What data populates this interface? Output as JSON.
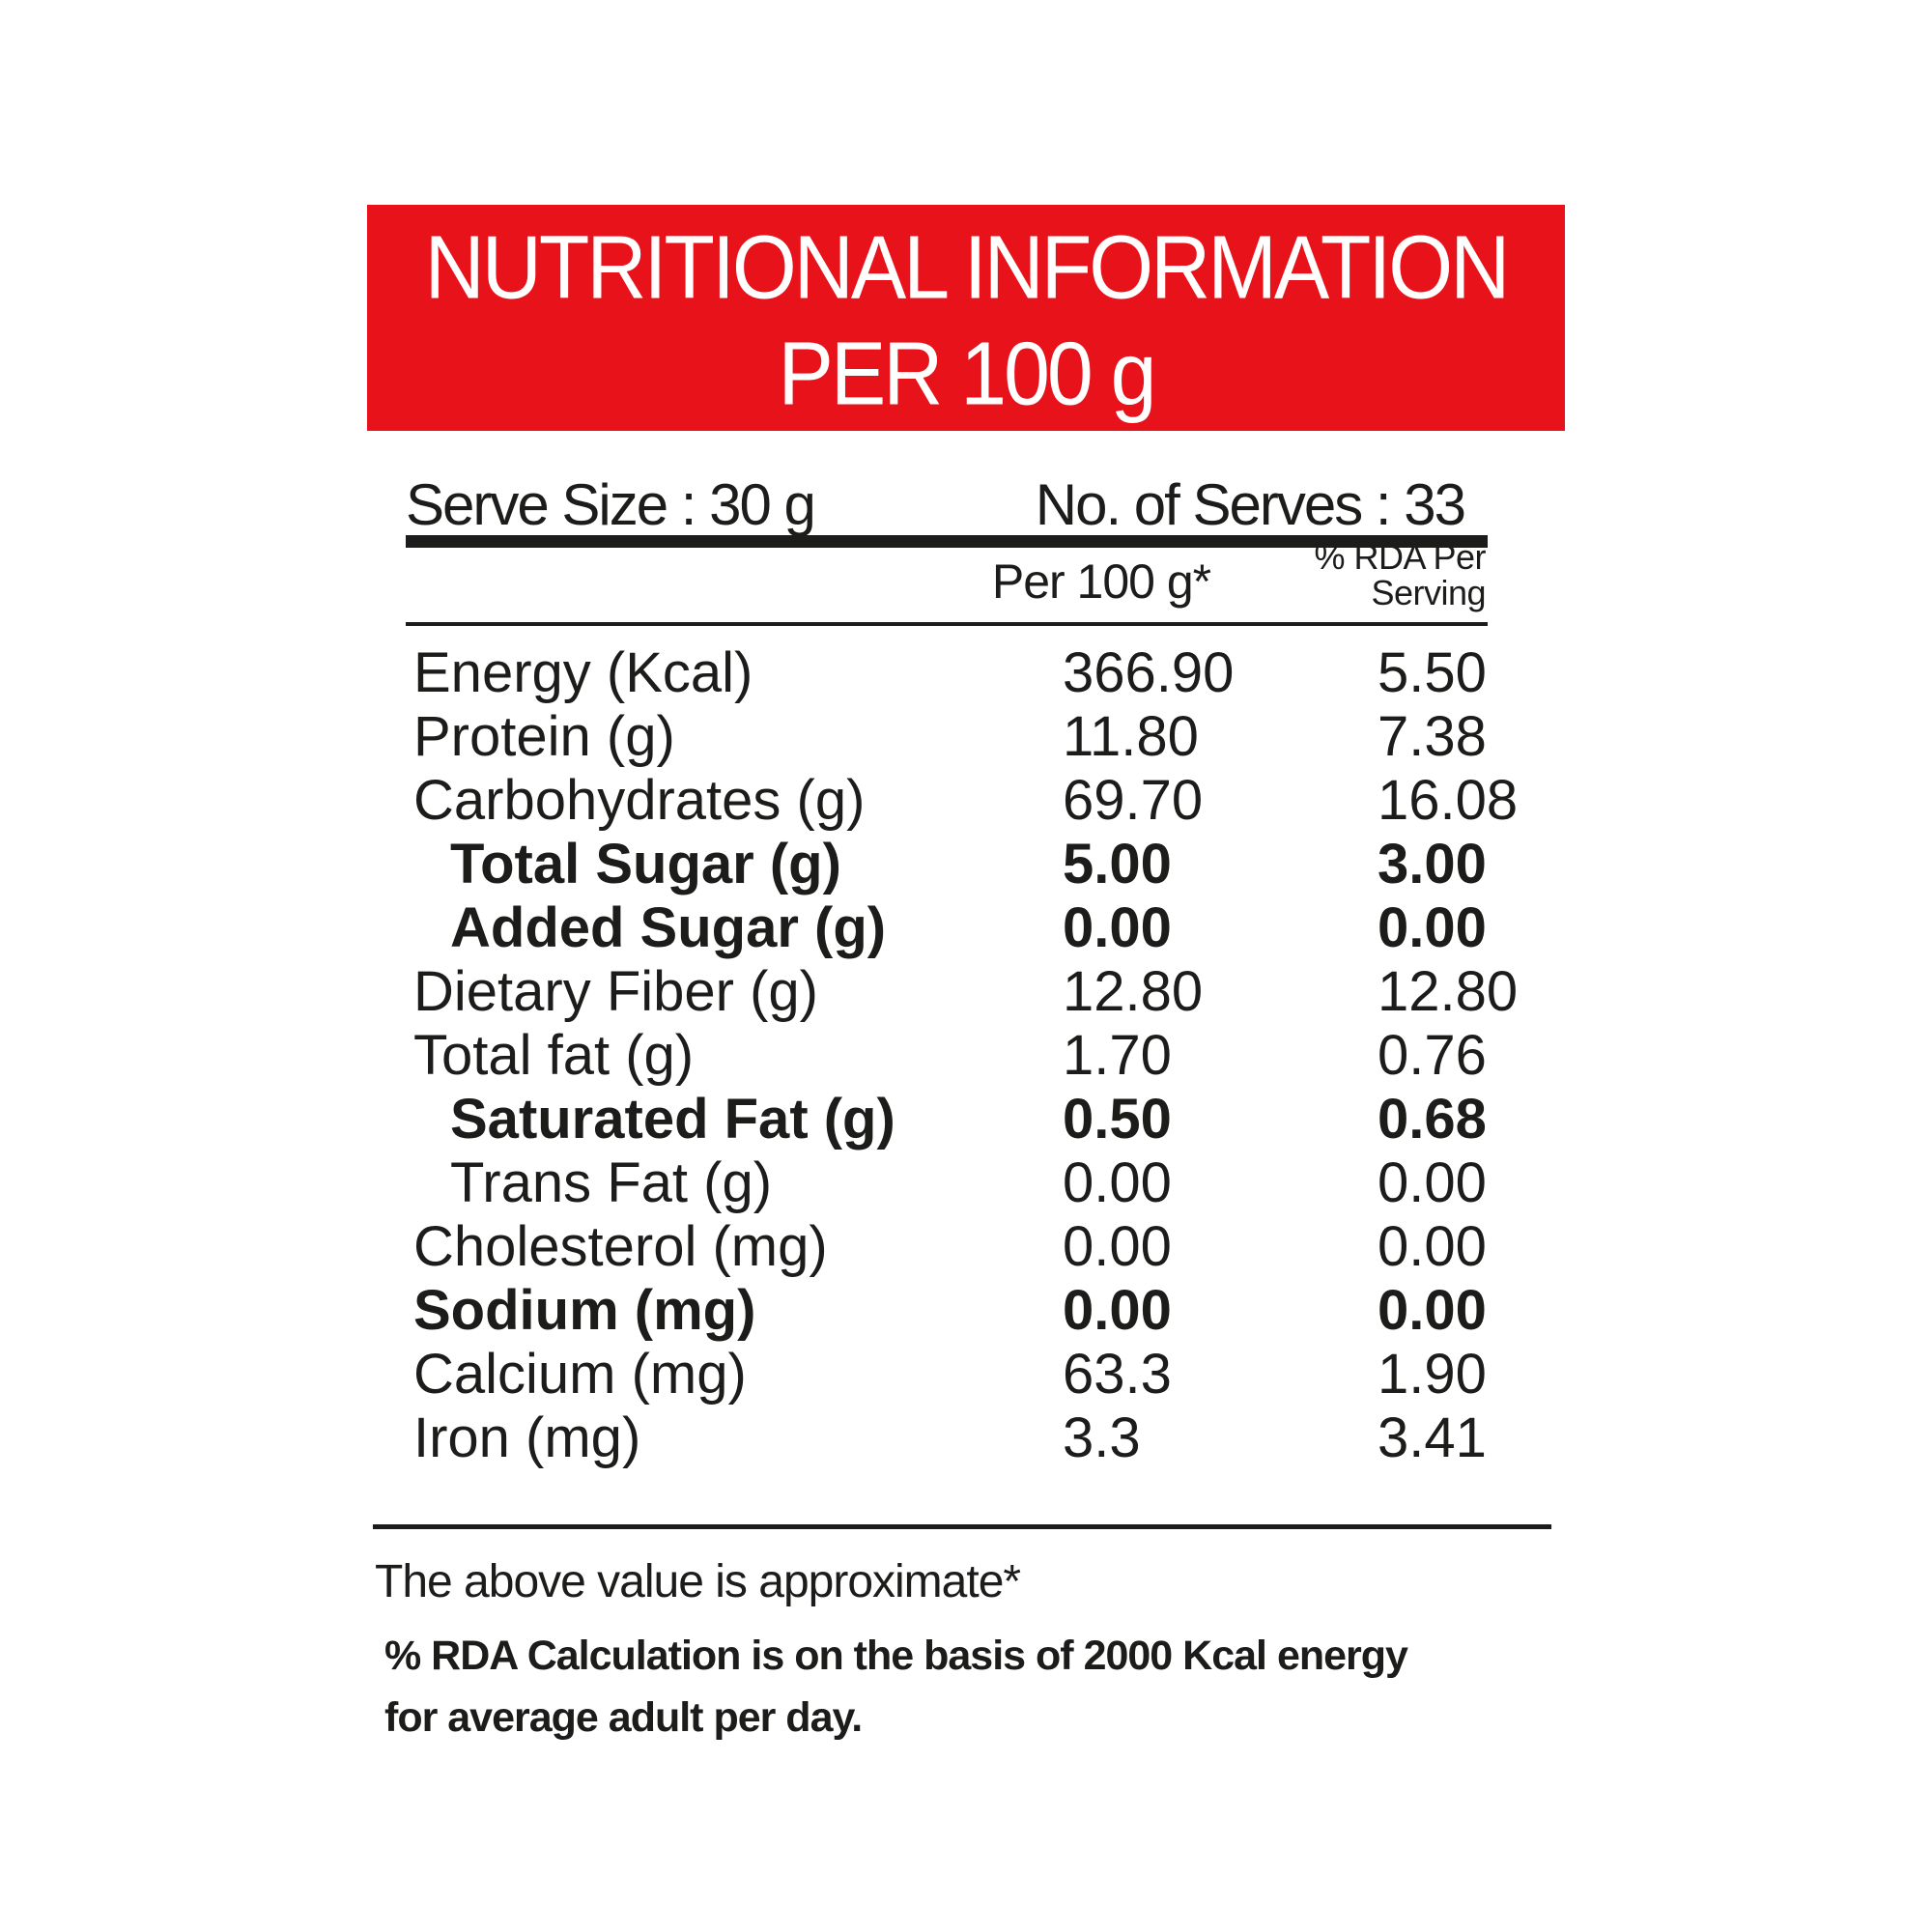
{
  "banner": {
    "line1": "NUTRITIONAL INFORMATION",
    "line2": "PER 100 g",
    "bg_color": "#e8131a",
    "text_color": "#ffffff"
  },
  "serving": {
    "serve_size": "Serve Size : 30 g",
    "no_of_serves": "No. of Serves : 33"
  },
  "table": {
    "col1_header": "Per 100 g*",
    "col2_header_line1": "% RDA Per",
    "col2_header_line2": "Serving",
    "rows": [
      {
        "label": "Energy (Kcal)",
        "per_100g": "366.90",
        "rda_per_serving": "5.50",
        "bold": false,
        "indent": false
      },
      {
        "label": "Protein (g)",
        "per_100g": "11.80",
        "rda_per_serving": "7.38",
        "bold": false,
        "indent": false
      },
      {
        "label": "Carbohydrates (g)",
        "per_100g": "69.70",
        "rda_per_serving": "16.08",
        "bold": false,
        "indent": false
      },
      {
        "label": "Total Sugar (g)",
        "per_100g": "5.00",
        "rda_per_serving": "3.00",
        "bold": true,
        "indent": true
      },
      {
        "label": "Added Sugar (g)",
        "per_100g": "0.00",
        "rda_per_serving": "0.00",
        "bold": true,
        "indent": true
      },
      {
        "label": "Dietary Fiber (g)",
        "per_100g": "12.80",
        "rda_per_serving": "12.80",
        "bold": false,
        "indent": false
      },
      {
        "label": "Total fat (g)",
        "per_100g": "1.70",
        "rda_per_serving": "0.76",
        "bold": false,
        "indent": false
      },
      {
        "label": "Saturated Fat (g)",
        "per_100g": "0.50",
        "rda_per_serving": "0.68",
        "bold": true,
        "indent": true
      },
      {
        "label": "Trans Fat (g)",
        "per_100g": "0.00",
        "rda_per_serving": "0.00",
        "bold": false,
        "indent": true
      },
      {
        "label": "Cholesterol (mg)",
        "per_100g": "0.00",
        "rda_per_serving": "0.00",
        "bold": false,
        "indent": false
      },
      {
        "label": "Sodium (mg)",
        "per_100g": "0.00",
        "rda_per_serving": "0.00",
        "bold": true,
        "indent": false
      },
      {
        "label": "Calcium (mg)",
        "per_100g": "63.3",
        "rda_per_serving": "1.90",
        "bold": false,
        "indent": false
      },
      {
        "label": "Iron (mg)",
        "per_100g": "3.3",
        "rda_per_serving": "3.41",
        "bold": false,
        "indent": false
      }
    ]
  },
  "footnotes": {
    "approximate": "The above value is approximate*",
    "rda_note_line1": "% RDA Calculation is on the basis of 2000 Kcal energy",
    "rda_note_line2": "for average adult per day."
  }
}
